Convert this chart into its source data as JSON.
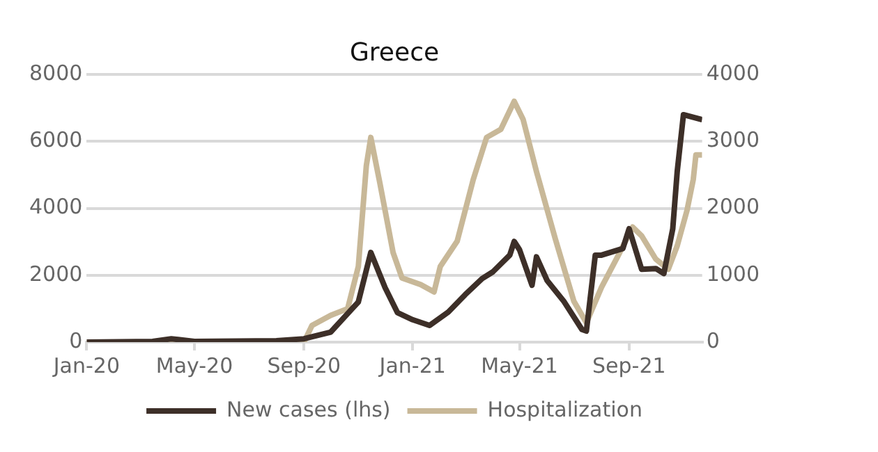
{
  "chart_data": {
    "type": "line",
    "title": "Greece",
    "grid": "y",
    "legend": "bottom",
    "marker": "none",
    "xlim": [
      "2020-01-01",
      "2021-11-22"
    ],
    "xticks": [
      {
        "value": "2020-01-01",
        "label": "Jan-20"
      },
      {
        "value": "2020-05-01",
        "label": "May-20"
      },
      {
        "value": "2020-09-01",
        "label": "Sep-20"
      },
      {
        "value": "2021-01-01",
        "label": "Jan-21"
      },
      {
        "value": "2021-05-01",
        "label": "May-21"
      },
      {
        "value": "2021-09-01",
        "label": "Sep-21"
      }
    ],
    "ylim": [
      0,
      8000
    ],
    "yticks": [
      0,
      2000,
      4000,
      6000,
      8000
    ],
    "y2lim": [
      0,
      4000
    ],
    "y2ticks": [
      0,
      1000,
      2000,
      3000,
      4000
    ],
    "series": [
      {
        "name": "New cases (lhs)",
        "color": "#3d2f28",
        "x": [
          "2020-01-01",
          "2020-03-15",
          "2020-04-05",
          "2020-05-01",
          "2020-08-01",
          "2020-09-01",
          "2020-10-01",
          "2020-11-01",
          "2020-11-15",
          "2020-12-01",
          "2020-12-15",
          "2021-01-01",
          "2021-01-20",
          "2021-02-10",
          "2021-03-01",
          "2021-03-20",
          "2021-04-01",
          "2021-04-20",
          "2021-04-25",
          "2021-05-01",
          "2021-05-15",
          "2021-05-20",
          "2021-06-01",
          "2021-06-20",
          "2021-07-10",
          "2021-07-15",
          "2021-07-25",
          "2021-08-01",
          "2021-08-25",
          "2021-09-01",
          "2021-09-15",
          "2021-10-01",
          "2021-10-10",
          "2021-10-20",
          "2021-10-25",
          "2021-11-01",
          "2021-11-22"
        ],
        "values": [
          0,
          20,
          100,
          20,
          40,
          100,
          300,
          1200,
          2680,
          1630,
          880,
          670,
          500,
          900,
          1420,
          1900,
          2100,
          2600,
          3010,
          2760,
          1700,
          2550,
          1840,
          1210,
          380,
          330,
          2600,
          2600,
          2800,
          3390,
          2180,
          2200,
          2050,
          3390,
          5100,
          6800,
          6650
        ]
      },
      {
        "name": "Hospitalization",
        "color": "#c8b898",
        "axis": "y2",
        "x": [
          "2020-01-01",
          "2020-09-01",
          "2020-09-10",
          "2020-10-01",
          "2020-10-20",
          "2020-11-01",
          "2020-11-10",
          "2020-11-15",
          "2020-11-25",
          "2020-12-10",
          "2020-12-20",
          "2021-01-10",
          "2021-01-25",
          "2021-02-01",
          "2021-02-20",
          "2021-03-10",
          "2021-03-25",
          "2021-04-10",
          "2021-04-25",
          "2021-05-05",
          "2021-05-20",
          "2021-06-10",
          "2021-07-01",
          "2021-07-15",
          "2021-08-01",
          "2021-08-20",
          "2021-09-05",
          "2021-09-15",
          "2021-10-01",
          "2021-10-15",
          "2021-10-25",
          "2021-11-05",
          "2021-11-12",
          "2021-11-15",
          "2021-11-22"
        ],
        "values": [
          0,
          0,
          250,
          400,
          500,
          1130,
          2640,
          3060,
          2390,
          1340,
          960,
          860,
          750,
          1130,
          1510,
          2430,
          3060,
          3180,
          3600,
          3330,
          2550,
          1550,
          610,
          290,
          820,
          1300,
          1720,
          1590,
          1240,
          1090,
          1440,
          1970,
          2430,
          2800,
          2800
        ]
      }
    ]
  }
}
